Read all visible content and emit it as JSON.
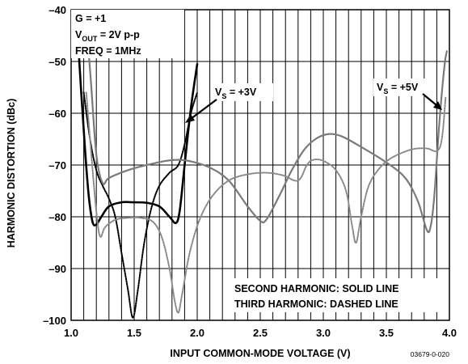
{
  "chart_data": {
    "type": "line",
    "xlabel": "INPUT COMMON-MODE VOLTAGE (V)",
    "ylabel": "HARMONIC DISTORTION (dBc)",
    "xlim": [
      1.0,
      4.0
    ],
    "ylim": [
      -100,
      -40
    ],
    "x_ticks": [
      "1.0",
      "1.5",
      "2.0",
      "2.5",
      "3.0",
      "3.5",
      "4.0"
    ],
    "y_ticks": [
      "–40",
      "–50",
      "–60",
      "–70",
      "–80",
      "–90",
      "–100"
    ],
    "grid": true,
    "conditions": {
      "line1_pre": "G = +1",
      "line2_pre": "V",
      "line2_sub": "OUT",
      "line2_post": " = 2V p-p",
      "line3_pre": "FREQ = 1MHz"
    },
    "label_vs3": {
      "pre": "V",
      "sub": "S",
      "post": " = +3V"
    },
    "label_vs5": {
      "pre": "V",
      "sub": "S",
      "post": " = +5V"
    },
    "legend_line1": "SECOND HARMONIC: SOLID LINE",
    "legend_line2": "THIRD HARMONIC: DASHED LINE",
    "figure_id": "03679-0-020",
    "series": [
      {
        "key": "vs3_second",
        "color": "#000000",
        "dashed": false,
        "width": 2.6,
        "points": [
          [
            1.05,
            -44
          ],
          [
            1.08,
            -56
          ],
          [
            1.11,
            -67
          ],
          [
            1.14,
            -76
          ],
          [
            1.17,
            -81
          ],
          [
            1.2,
            -81.5
          ],
          [
            1.24,
            -80
          ],
          [
            1.3,
            -78
          ],
          [
            1.4,
            -77.2
          ],
          [
            1.5,
            -77.2
          ],
          [
            1.6,
            -77.3
          ],
          [
            1.7,
            -78
          ],
          [
            1.78,
            -80
          ],
          [
            1.83,
            -81.2
          ],
          [
            1.86,
            -79
          ],
          [
            1.9,
            -70
          ],
          [
            1.95,
            -59
          ],
          [
            2.0,
            -50.5
          ]
        ]
      },
      {
        "key": "vs3_third",
        "color": "#000000",
        "dashed": true,
        "width": 2.0,
        "points": [
          [
            1.1,
            -56
          ],
          [
            1.15,
            -65
          ],
          [
            1.2,
            -71
          ],
          [
            1.25,
            -74
          ],
          [
            1.3,
            -76.5
          ],
          [
            1.35,
            -80
          ],
          [
            1.4,
            -87
          ],
          [
            1.45,
            -94
          ],
          [
            1.49,
            -99.5
          ],
          [
            1.53,
            -94
          ],
          [
            1.58,
            -85
          ],
          [
            1.64,
            -78
          ],
          [
            1.7,
            -74
          ],
          [
            1.78,
            -71.5
          ],
          [
            1.85,
            -70
          ],
          [
            1.9,
            -66
          ],
          [
            1.95,
            -60
          ],
          [
            2.0,
            -56
          ]
        ]
      },
      {
        "key": "vs5_second",
        "color": "#7a7a7a",
        "dashed": false,
        "width": 2.2,
        "points": [
          [
            1.12,
            -42
          ],
          [
            1.16,
            -55
          ],
          [
            1.2,
            -68
          ],
          [
            1.25,
            -73.5
          ],
          [
            1.3,
            -72.5
          ],
          [
            1.45,
            -71
          ],
          [
            1.6,
            -70
          ],
          [
            1.75,
            -69.2
          ],
          [
            1.85,
            -69
          ],
          [
            1.95,
            -69.3
          ],
          [
            2.1,
            -70.5
          ],
          [
            2.25,
            -73
          ],
          [
            2.4,
            -78
          ],
          [
            2.5,
            -80.8
          ],
          [
            2.55,
            -80.5
          ],
          [
            2.65,
            -76
          ],
          [
            2.75,
            -71
          ],
          [
            2.85,
            -67
          ],
          [
            2.95,
            -64.8
          ],
          [
            3.05,
            -64
          ],
          [
            3.15,
            -64.5
          ],
          [
            3.3,
            -66.5
          ],
          [
            3.5,
            -69.5
          ],
          [
            3.65,
            -72.5
          ],
          [
            3.75,
            -77
          ],
          [
            3.82,
            -82.5
          ],
          [
            3.85,
            -82
          ],
          [
            3.88,
            -76
          ],
          [
            3.92,
            -62
          ],
          [
            3.96,
            -51
          ],
          [
            3.98,
            -48
          ]
        ]
      },
      {
        "key": "vs5_third",
        "color": "#8a8a8a",
        "dashed": true,
        "width": 2.0,
        "points": [
          [
            1.12,
            -56
          ],
          [
            1.16,
            -68
          ],
          [
            1.2,
            -79
          ],
          [
            1.23,
            -83.8
          ],
          [
            1.27,
            -82
          ],
          [
            1.35,
            -80.6
          ],
          [
            1.45,
            -80.2
          ],
          [
            1.55,
            -80.2
          ],
          [
            1.65,
            -81
          ],
          [
            1.72,
            -84
          ],
          [
            1.78,
            -90
          ],
          [
            1.82,
            -96
          ],
          [
            1.85,
            -98.5
          ],
          [
            1.88,
            -95
          ],
          [
            1.94,
            -87
          ],
          [
            2.02,
            -80.5
          ],
          [
            2.12,
            -76
          ],
          [
            2.25,
            -73
          ],
          [
            2.4,
            -71.8
          ],
          [
            2.55,
            -71.5
          ],
          [
            2.68,
            -72
          ],
          [
            2.8,
            -73
          ],
          [
            2.87,
            -70
          ],
          [
            2.92,
            -69
          ],
          [
            3.0,
            -69.2
          ],
          [
            3.1,
            -71
          ],
          [
            3.18,
            -75
          ],
          [
            3.23,
            -82
          ],
          [
            3.26,
            -85
          ],
          [
            3.3,
            -80
          ],
          [
            3.36,
            -74
          ],
          [
            3.45,
            -70.5
          ],
          [
            3.55,
            -68.5
          ],
          [
            3.7,
            -67
          ],
          [
            3.82,
            -66.8
          ],
          [
            3.9,
            -67.3
          ],
          [
            3.94,
            -65
          ],
          [
            3.97,
            -57
          ]
        ]
      }
    ]
  }
}
